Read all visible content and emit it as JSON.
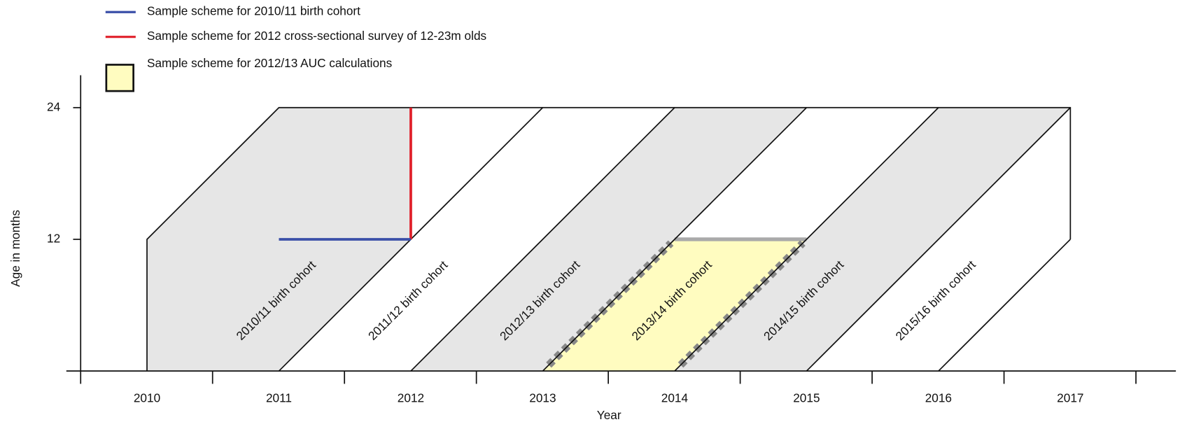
{
  "legend": [
    {
      "label": "Sample scheme for 2010/11 birth cohort",
      "color": "#3a4fa8"
    },
    {
      "label": "Sample scheme for 2012 cross-sectional survey of 12-23m olds",
      "color": "#e0202a"
    },
    {
      "label": "Sample scheme for 2012/13 AUC calculations",
      "color": "#fffcc0"
    }
  ],
  "y_axis": {
    "label": "Age in months",
    "ticks": [
      "24",
      "12"
    ]
  },
  "x_axis": {
    "label": "Year",
    "ticks": [
      "2010",
      "2011",
      "2012",
      "2013",
      "2014",
      "2015",
      "2016",
      "2017"
    ]
  },
  "cohorts": [
    "2010/11 birth cohort",
    "2011/12 birth cohort",
    "2012/13 birth cohort",
    "2013/14 birth cohort",
    "2014/15 birth cohort",
    "2015/16 birth cohort"
  ]
}
